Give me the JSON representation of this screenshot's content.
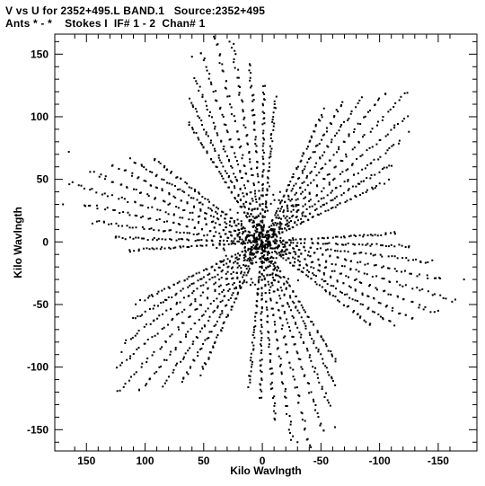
{
  "header": {
    "line1": "V vs U for 2352+495.L BAND.1   Source:2352+495",
    "line2": "Ants * - *    Stokes I  IF# 1 - 2  Chan# 1"
  },
  "chart_data": {
    "type": "scatter",
    "title": "V vs U for 2352+495.L BAND.1   Source:2352+495",
    "subtitle": "Ants * - *    Stokes I  IF# 1 - 2  Chan# 1",
    "xlabel": "Kilo Wavlngth",
    "ylabel": "Kilo Wavlngth",
    "xlim": [
      177,
      -183
    ],
    "ylim": [
      -167,
      166
    ],
    "x_reversed": true,
    "xticks": [
      150,
      100,
      50,
      0,
      -50,
      -100,
      -150
    ],
    "xtick_labels": [
      "150",
      "100",
      "50",
      "0",
      "-50",
      "-100",
      "-150"
    ],
    "yticks": [
      150,
      100,
      50,
      0,
      -50,
      -100,
      -150
    ],
    "ytick_labels": [
      "150",
      "100",
      "50",
      "0",
      "-50",
      "-100",
      "-150"
    ],
    "grid": false,
    "marker_color": "#000000",
    "arm_sample_points": {
      "description": "representative extreme u-v points at tips of the six-armed coverage star",
      "points": [
        {
          "u": 28,
          "v": 160
        },
        {
          "u": 60,
          "v": 148
        },
        {
          "u": -105,
          "v": 118
        },
        {
          "u": -125,
          "v": 88
        },
        {
          "u": 165,
          "v": 72
        },
        {
          "u": 170,
          "v": 30
        },
        {
          "u": -172,
          "v": -30
        },
        {
          "u": -150,
          "v": -55
        },
        {
          "u": 105,
          "v": -118
        },
        {
          "u": 120,
          "v": -88
        },
        {
          "u": -30,
          "v": -160
        },
        {
          "u": -62,
          "v": -148
        }
      ]
    }
  }
}
